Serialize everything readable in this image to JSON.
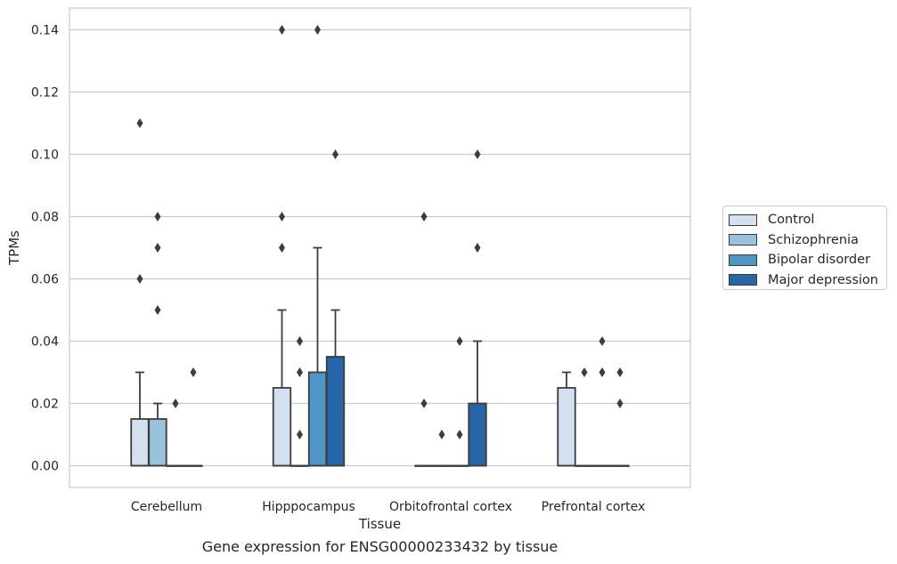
{
  "chart_data": {
    "type": "box",
    "caption": "Gene expression for ENSG00000233432 by tissue",
    "xlabel": "Tissue",
    "ylabel": "TPMs",
    "ylim": [
      -0.007,
      0.147
    ],
    "yticks": [
      "0.00",
      "0.02",
      "0.04",
      "0.06",
      "0.08",
      "0.10",
      "0.12",
      "0.14"
    ],
    "grid": "horizontal",
    "legend_position": "right",
    "categories": [
      "Cerebellum",
      "Hipppocampus",
      "Orbitofrontal cortex",
      "Prefrontal cortex"
    ],
    "series": [
      {
        "name": "Control",
        "color": "#d2e0f0",
        "boxes": [
          {
            "q1": 0.0,
            "median": 0.0,
            "q3": 0.015,
            "whisker_low": 0.0,
            "whisker_high": 0.03,
            "outliers": [
              0.06,
              0.11
            ]
          },
          {
            "q1": 0.0,
            "median": 0.0,
            "q3": 0.025,
            "whisker_low": 0.0,
            "whisker_high": 0.05,
            "outliers": [
              0.07,
              0.08,
              0.14
            ]
          },
          {
            "q1": 0.0,
            "median": 0.0,
            "q3": 0.0,
            "whisker_low": 0.0,
            "whisker_high": 0.0,
            "outliers": [
              0.02,
              0.08
            ]
          },
          {
            "q1": 0.0,
            "median": 0.0,
            "q3": 0.025,
            "whisker_low": 0.0,
            "whisker_high": 0.03,
            "outliers": []
          }
        ]
      },
      {
        "name": "Schizophrenia",
        "color": "#9bc2dc",
        "boxes": [
          {
            "q1": 0.0,
            "median": 0.0,
            "q3": 0.015,
            "whisker_low": 0.0,
            "whisker_high": 0.02,
            "outliers": [
              0.05,
              0.07,
              0.08
            ]
          },
          {
            "q1": 0.0,
            "median": 0.0,
            "q3": 0.0,
            "whisker_low": 0.0,
            "whisker_high": 0.0,
            "outliers": [
              0.01,
              0.03,
              0.04
            ]
          },
          {
            "q1": 0.0,
            "median": 0.0,
            "q3": 0.0,
            "whisker_low": 0.0,
            "whisker_high": 0.0,
            "outliers": [
              0.01
            ]
          },
          {
            "q1": 0.0,
            "median": 0.0,
            "q3": 0.0,
            "whisker_low": 0.0,
            "whisker_high": 0.0,
            "outliers": [
              0.03
            ]
          }
        ]
      },
      {
        "name": "Bipolar disorder",
        "color": "#5096c4",
        "boxes": [
          {
            "q1": 0.0,
            "median": 0.0,
            "q3": 0.0,
            "whisker_low": 0.0,
            "whisker_high": 0.0,
            "outliers": [
              0.02
            ]
          },
          {
            "q1": 0.0,
            "median": 0.0,
            "q3": 0.03,
            "whisker_low": 0.0,
            "whisker_high": 0.07,
            "outliers": [
              0.14
            ]
          },
          {
            "q1": 0.0,
            "median": 0.0,
            "q3": 0.0,
            "whisker_low": 0.0,
            "whisker_high": 0.0,
            "outliers": [
              0.01,
              0.04
            ]
          },
          {
            "q1": 0.0,
            "median": 0.0,
            "q3": 0.0,
            "whisker_low": 0.0,
            "whisker_high": 0.0,
            "outliers": [
              0.03,
              0.04
            ]
          }
        ]
      },
      {
        "name": "Major depression",
        "color": "#2565a8",
        "boxes": [
          {
            "q1": 0.0,
            "median": 0.0,
            "q3": 0.0,
            "whisker_low": 0.0,
            "whisker_high": 0.0,
            "outliers": [
              0.03
            ]
          },
          {
            "q1": 0.0,
            "median": 0.0,
            "q3": 0.035,
            "whisker_low": 0.0,
            "whisker_high": 0.05,
            "outliers": [
              0.1
            ]
          },
          {
            "q1": 0.0,
            "median": 0.0,
            "q3": 0.02,
            "whisker_low": 0.0,
            "whisker_high": 0.04,
            "outliers": [
              0.07,
              0.1
            ]
          },
          {
            "q1": 0.0,
            "median": 0.0,
            "q3": 0.0,
            "whisker_low": 0.0,
            "whisker_high": 0.0,
            "outliers": [
              0.02,
              0.03
            ]
          }
        ]
      }
    ]
  }
}
